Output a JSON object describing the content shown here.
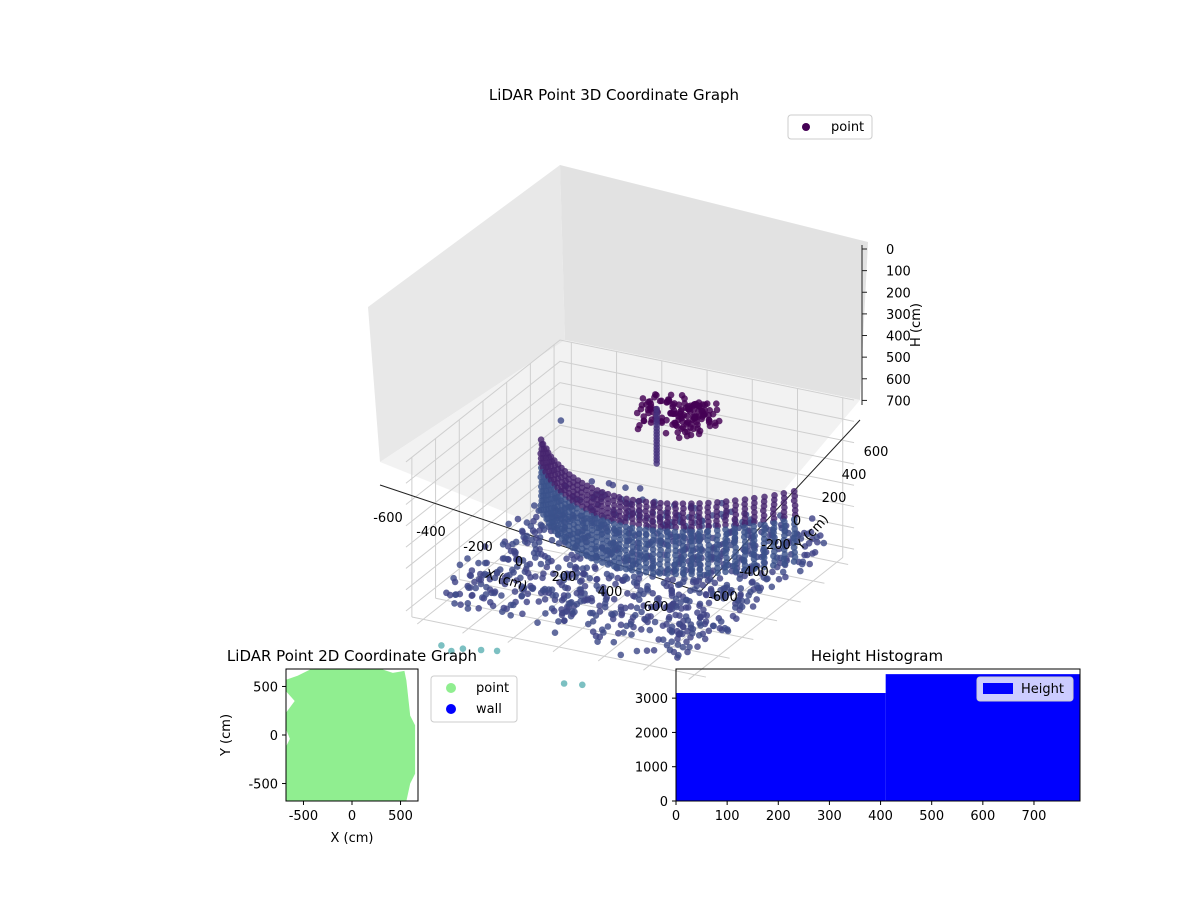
{
  "chart_data": [
    {
      "type": "scatter",
      "title": "LiDAR Point 3D Coordinate Graph",
      "xlabel": "X (cm)",
      "ylabel": "Y (cm)",
      "zlabel": "H (cm)",
      "xlim": [
        -650,
        650
      ],
      "ylim": [
        -650,
        650
      ],
      "zlim": [
        750,
        0
      ],
      "x_ticks": [
        -600,
        -400,
        -200,
        0,
        200,
        400,
        600
      ],
      "y_ticks": [
        -600,
        -400,
        -200,
        0,
        200,
        400,
        600
      ],
      "z_ticks": [
        0,
        100,
        200,
        300,
        400,
        500,
        600,
        700
      ],
      "legend": {
        "placement": "top-right",
        "entries": [
          "point"
        ]
      },
      "series_color": "#440154",
      "grid": true,
      "description_points": {
        "near_wall": {
          "x_range": [
            -560,
            580
          ],
          "y": -40,
          "h_range": [
            300,
            650
          ]
        },
        "upper_structure": {
          "x_range": [
            -150,
            150
          ],
          "y_range": [
            300,
            500
          ],
          "h_range": [
            50,
            200
          ]
        },
        "floor_points": {
          "x_range": [
            -550,
            600
          ],
          "y_range": [
            -600,
            600
          ],
          "h_range": [
            550,
            700
          ]
        },
        "outliers": [
          {
            "x": -620,
            "y": 600,
            "h": 350
          },
          {
            "x": 600,
            "y": -600,
            "h": 350
          },
          {
            "x": 300,
            "y": -650,
            "h": 700
          }
        ]
      }
    },
    {
      "type": "scatter",
      "title": "LiDAR Point 2D Coordinate Graph",
      "xlabel": "X (cm)",
      "ylabel": "Y (cm)",
      "xlim": [
        -680,
        680
      ],
      "ylim": [
        -680,
        680
      ],
      "x_ticks": [
        -500,
        0,
        500
      ],
      "y_ticks": [
        -500,
        0,
        500
      ],
      "legend": {
        "placement": "right",
        "entries": [
          "point",
          "wall"
        ]
      },
      "series": [
        {
          "name": "point",
          "color": "#90ee90"
        },
        {
          "name": "wall",
          "color": "#0000ff"
        }
      ],
      "grid": false
    },
    {
      "type": "bar",
      "title": "Height Histogram",
      "bins": [
        [
          0,
          410
        ],
        [
          410,
          790
        ]
      ],
      "values": [
        3150,
        3700
      ],
      "xlim": [
        0,
        790
      ],
      "ylim": [
        0,
        3850
      ],
      "x_ticks": [
        0,
        100,
        200,
        300,
        400,
        500,
        600,
        700
      ],
      "y_ticks": [
        0,
        1000,
        2000,
        3000
      ],
      "legend": {
        "placement": "top-right",
        "entries": [
          "Height"
        ]
      },
      "series": [
        {
          "name": "Height",
          "color": "#0000ff"
        }
      ],
      "grid": false
    }
  ]
}
